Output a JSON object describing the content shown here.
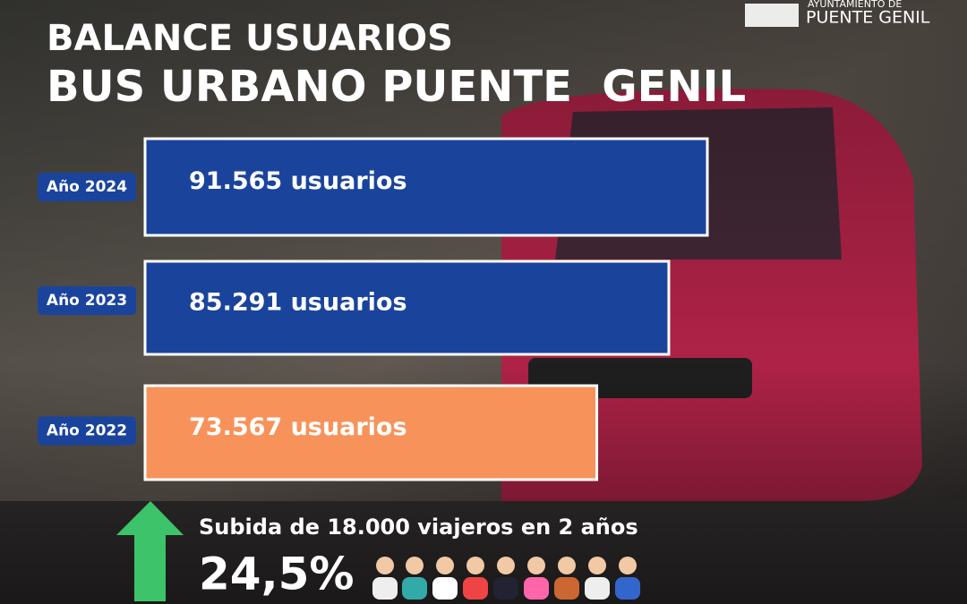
{
  "chart_data": {
    "type": "bar",
    "orientation": "horizontal",
    "title": "BALANCE USUARIOS",
    "subtitle": "BUS URBANO PUENTE  GENIL",
    "logo": [
      "AYUNTAMIENTO DE",
      "PUENTE GENIL"
    ],
    "categories": [
      "Año 2024",
      "Año 2023",
      "Año 2022"
    ],
    "values": [
      91565,
      85291,
      73567
    ],
    "value_labels": [
      "91.565 usuarios",
      "85.291 usuarios",
      "73.567 usuarios"
    ],
    "colors": [
      "#1a449c",
      "#1a449c",
      "#f7935a"
    ],
    "annotations": [
      "Subida de 18.000 viajeros en 2 años",
      "24,5%"
    ]
  }
}
